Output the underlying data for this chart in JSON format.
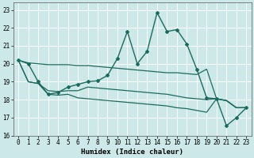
{
  "xlabel": "Humidex (Indice chaleur)",
  "bg_color": "#cce8e8",
  "grid_color": "#ffffff",
  "line_color": "#1a6b5e",
  "xlim": [
    -0.5,
    23.5
  ],
  "ylim": [
    16,
    23.4
  ],
  "xticks": [
    0,
    1,
    2,
    3,
    4,
    5,
    6,
    7,
    8,
    9,
    10,
    11,
    12,
    13,
    14,
    15,
    16,
    17,
    18,
    19,
    20,
    21,
    22,
    23
  ],
  "yticks": [
    16,
    17,
    18,
    19,
    20,
    21,
    22,
    23
  ],
  "tick_fontsize": 5.5,
  "xlabel_fontsize": 6.5,
  "lines": [
    {
      "x": [
        0,
        1,
        2,
        3,
        4,
        5,
        6,
        7,
        8,
        9,
        10,
        11,
        12,
        13,
        14,
        15,
        16,
        17,
        18,
        19,
        20,
        21,
        22,
        23
      ],
      "y": [
        20.2,
        20.0,
        19.0,
        18.3,
        18.4,
        18.7,
        18.85,
        19.0,
        19.05,
        19.35,
        20.3,
        21.8,
        20.0,
        20.7,
        22.85,
        21.8,
        21.9,
        21.1,
        19.7,
        18.1,
        18.05,
        16.55,
        17.0,
        17.55
      ],
      "marker": "D",
      "markersize": 2.0,
      "linewidth": 1.0,
      "with_markers": true
    },
    {
      "x": [
        0,
        1,
        2,
        3,
        4,
        5,
        6,
        7,
        8,
        9,
        10,
        11,
        12,
        13,
        14,
        15,
        16,
        17,
        18,
        19,
        20,
        21,
        22,
        23
      ],
      "y": [
        20.2,
        20.05,
        20.0,
        19.95,
        19.95,
        19.95,
        19.9,
        19.9,
        19.85,
        19.8,
        19.75,
        19.7,
        19.65,
        19.6,
        19.55,
        19.5,
        19.5,
        19.45,
        19.4,
        19.7,
        18.05,
        17.95,
        17.55,
        17.55
      ],
      "marker": null,
      "linewidth": 0.9,
      "with_markers": false
    },
    {
      "x": [
        0,
        1,
        2,
        3,
        4,
        5,
        6,
        7,
        8,
        9,
        10,
        11,
        12,
        13,
        14,
        15,
        16,
        17,
        18,
        19,
        20,
        21,
        22,
        23
      ],
      "y": [
        20.2,
        19.0,
        18.9,
        18.5,
        18.45,
        18.5,
        18.5,
        18.7,
        18.65,
        18.6,
        18.55,
        18.5,
        18.45,
        18.4,
        18.35,
        18.3,
        18.2,
        18.1,
        18.05,
        18.0,
        18.05,
        17.95,
        17.55,
        17.55
      ],
      "marker": null,
      "linewidth": 0.9,
      "with_markers": false
    },
    {
      "x": [
        0,
        1,
        2,
        3,
        4,
        5,
        6,
        7,
        8,
        9,
        10,
        11,
        12,
        13,
        14,
        15,
        16,
        17,
        18,
        19,
        20,
        21,
        22,
        23
      ],
      "y": [
        20.2,
        19.0,
        18.9,
        18.3,
        18.25,
        18.3,
        18.1,
        18.05,
        18.0,
        17.95,
        17.9,
        17.85,
        17.8,
        17.75,
        17.7,
        17.65,
        17.55,
        17.5,
        17.4,
        17.3,
        18.05,
        17.95,
        17.55,
        17.55
      ],
      "marker": null,
      "linewidth": 0.9,
      "with_markers": false
    }
  ]
}
